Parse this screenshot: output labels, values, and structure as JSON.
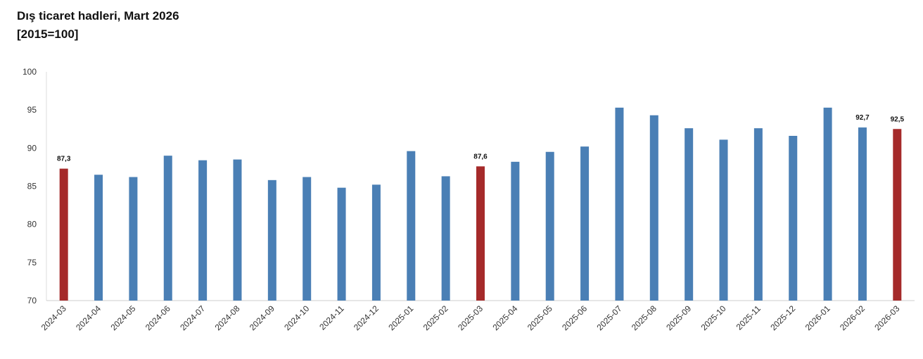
{
  "chart_data": {
    "type": "bar",
    "title": "Dış ticaret hadleri, Mart 2026",
    "subtitle": "[2015=100]",
    "categories": [
      "2024-03",
      "2024-04",
      "2024-05",
      "2024-06",
      "2024-07",
      "2024-08",
      "2024-09",
      "2024-10",
      "2024-11",
      "2024-12",
      "2025-01",
      "2025-02",
      "2025-03",
      "2025-04",
      "2025-05",
      "2025-06",
      "2025-07",
      "2025-08",
      "2025-09",
      "2025-10",
      "2025-11",
      "2025-12",
      "2026-01",
      "2026-02",
      "2026-03"
    ],
    "values": [
      87.3,
      86.5,
      86.2,
      89.0,
      88.4,
      88.5,
      85.8,
      86.2,
      84.8,
      85.2,
      89.6,
      86.3,
      87.6,
      88.2,
      89.5,
      90.2,
      95.3,
      94.3,
      92.6,
      91.1,
      92.6,
      91.6,
      95.3,
      92.7,
      92.5
    ],
    "value_labels": [
      "87,3",
      null,
      null,
      null,
      null,
      null,
      null,
      null,
      null,
      null,
      null,
      null,
      "87,6",
      null,
      null,
      null,
      null,
      null,
      null,
      null,
      null,
      null,
      null,
      "92,7",
      "92,5"
    ],
    "colors": [
      "#a52a2a",
      "#4a7fb5",
      "#4a7fb5",
      "#4a7fb5",
      "#4a7fb5",
      "#4a7fb5",
      "#4a7fb5",
      "#4a7fb5",
      "#4a7fb5",
      "#4a7fb5",
      "#4a7fb5",
      "#4a7fb5",
      "#a52a2a",
      "#4a7fb5",
      "#4a7fb5",
      "#4a7fb5",
      "#4a7fb5",
      "#4a7fb5",
      "#4a7fb5",
      "#4a7fb5",
      "#4a7fb5",
      "#4a7fb5",
      "#4a7fb5",
      "#4a7fb5",
      "#a52a2a"
    ],
    "ylim": [
      70,
      100
    ],
    "yticks": [
      70,
      75,
      80,
      85,
      90,
      95,
      100
    ],
    "grid": false
  }
}
